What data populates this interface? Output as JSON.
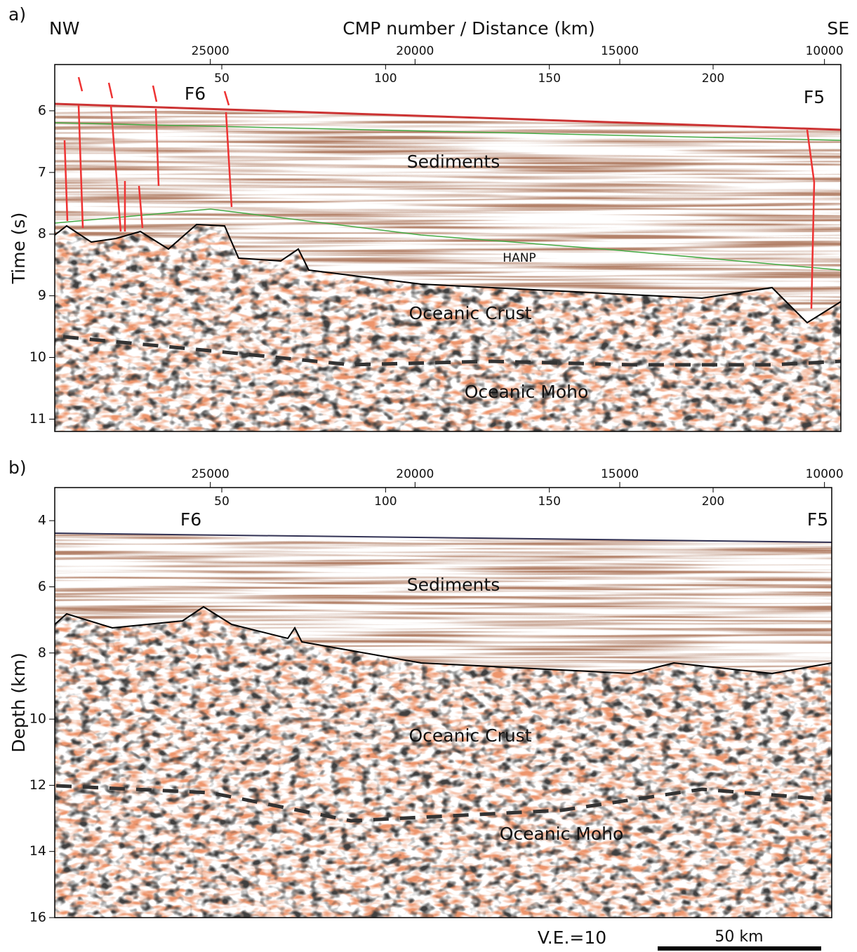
{
  "figure": {
    "panels": [
      {
        "label": "a)",
        "left_label": "NW",
        "right_label": "SE",
        "x_axis_title": "CMP number / Distance (km)",
        "y_axis_title": "Time (s)",
        "cmp_lim": [
          28800,
          9600
        ],
        "cmp_ticks": [
          25000,
          20000,
          15000,
          10000
        ],
        "distance_lim": [
          -1,
          239
        ],
        "distance_ticks": [
          50,
          100,
          150,
          200
        ],
        "ylim": [
          5.25,
          11.2
        ],
        "yticks": [
          6,
          7,
          8,
          9,
          10,
          11
        ],
        "annotations": [
          "F6",
          "F5",
          "Sediments",
          "HANP",
          "Oceanic Crust",
          "Oceanic Moho"
        ]
      },
      {
        "label": "b)",
        "y_axis_title": "Depth (km)",
        "cmp_lim": [
          28800,
          9600
        ],
        "cmp_ticks": [
          25000,
          20000,
          15000,
          10000
        ],
        "distance_lim": [
          -1,
          239
        ],
        "distance_ticks": [
          50,
          100,
          150,
          200
        ],
        "ylim": [
          3,
          16
        ],
        "yticks": [
          4,
          6,
          8,
          10,
          12,
          14,
          16
        ],
        "annotations": [
          "F6",
          "F5",
          "Sediments",
          "Oceanic Crust",
          "Oceanic Moho"
        ]
      }
    ],
    "vertical_exaggeration": "V.E.=10",
    "scale_bar": "50 km"
  }
}
